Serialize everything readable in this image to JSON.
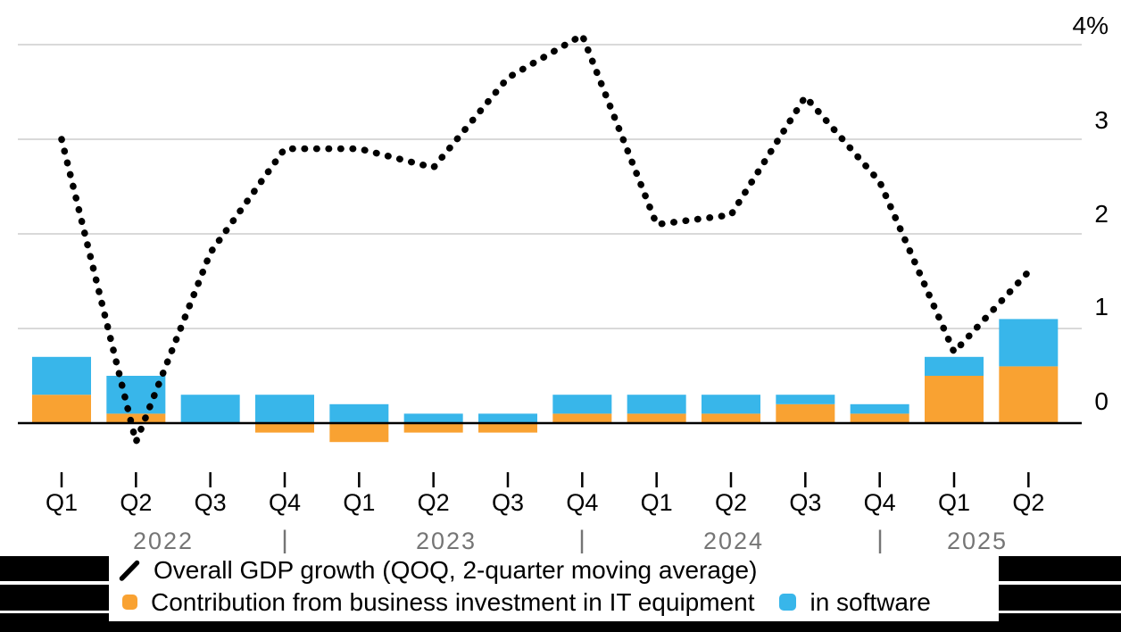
{
  "chart": {
    "y_axis": {
      "unit": "%",
      "ticks": [
        {
          "value": 0,
          "label": "0"
        },
        {
          "value": 1,
          "label": "1"
        },
        {
          "value": 2,
          "label": "2"
        },
        {
          "value": 3,
          "label": "3"
        },
        {
          "value": 4,
          "label": "4%"
        }
      ]
    },
    "x_axis": {
      "quarter_labels": [
        "Q1",
        "Q2",
        "Q3",
        "Q4",
        "Q1",
        "Q2",
        "Q3",
        "Q4",
        "Q1",
        "Q2",
        "Q3",
        "Q4",
        "Q1",
        "Q2"
      ],
      "year_labels": [
        "2022",
        "2023",
        "2024",
        "2025"
      ],
      "year_divider": "|"
    },
    "legend": {
      "line": "Overall GDP growth (QOQ, 2-quarter moving average)",
      "equipment": "Contribution from business investment in IT equipment",
      "software": "in software"
    },
    "colors": {
      "equipment": "#F9A232",
      "software": "#38B6EA",
      "line": "#000000",
      "gridline": "#D9D9D9",
      "year_text": "#757575",
      "footer_background": "#000000"
    }
  },
  "chart_data": {
    "type": "combo-stacked-bar-line",
    "unit": "percent",
    "categories": [
      "Q1 2022",
      "Q2 2022",
      "Q3 2022",
      "Q4 2022",
      "Q1 2023",
      "Q2 2023",
      "Q3 2023",
      "Q4 2023",
      "Q1 2024",
      "Q2 2024",
      "Q3 2024",
      "Q4 2024",
      "Q1 2025",
      "Q2 2025"
    ],
    "bar_series": [
      {
        "name": "Contribution from business investment in IT equipment",
        "color": "#F9A232",
        "values": [
          0.3,
          0.1,
          0.0,
          -0.1,
          -0.2,
          -0.1,
          -0.1,
          0.1,
          0.1,
          0.1,
          0.2,
          0.1,
          0.5,
          0.6
        ]
      },
      {
        "name": "in software",
        "color": "#38B6EA",
        "values": [
          0.4,
          0.4,
          0.3,
          0.3,
          0.2,
          0.1,
          0.1,
          0.2,
          0.2,
          0.2,
          0.1,
          0.1,
          0.2,
          0.5
        ]
      }
    ],
    "line_series": {
      "name": "Overall GDP growth (QOQ, 2-quarter moving average)",
      "style": "dotted",
      "color": "#000000",
      "values": [
        3.0,
        -0.2,
        1.8,
        2.9,
        2.9,
        2.7,
        3.65,
        4.1,
        2.1,
        2.2,
        3.45,
        2.55,
        0.75,
        1.6
      ]
    },
    "yticks": [
      0,
      1,
      2,
      3,
      4
    ],
    "ylim": [
      -0.5,
      4.3
    ],
    "grid": true,
    "legend_position": "bottom"
  }
}
